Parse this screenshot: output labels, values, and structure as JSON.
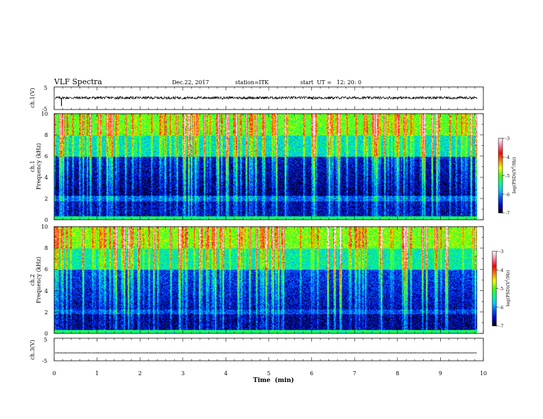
{
  "chart_data": [
    {
      "id": "ch1-waveform",
      "type": "line",
      "title": "VLF Spectra",
      "header": {
        "title": "VLF Spectra",
        "date": "Dec.22, 2017",
        "station": "station=ITK",
        "start": "start  UT =   12: 20: 0"
      },
      "ylabel": "ch.1(V)",
      "ylim": [
        -5,
        5
      ],
      "yticks": [
        5,
        -5
      ],
      "xlim": [
        0,
        10
      ],
      "x_unit": "min",
      "series": [
        {
          "values_description_free": true,
          "baseline": 0.2,
          "noise_amplitude": 0.6,
          "spike_at_min": 0.17,
          "spike_value": -3.5
        }
      ],
      "data_extent_min": 9.85
    },
    {
      "id": "ch1-spectrogram",
      "type": "heatmap",
      "ylabel": "ch.1\nFrequency  (kHz)",
      "ylabel_line1": "ch.1",
      "ylabel_line2": "Frequency  (kHz)",
      "ylim": [
        0,
        10
      ],
      "yticks": [
        0,
        2,
        4,
        6,
        8,
        10
      ],
      "xlim": [
        0,
        10
      ],
      "x_unit": "min",
      "data_extent_min": 9.85,
      "colorbar": {
        "label": "log(PSD)(V²/Hz)",
        "label_text": "log(PSD)(V",
        "label_sup": "2",
        "label_tail": "/Hz)",
        "range": [
          -7,
          -3
        ],
        "ticks": [
          "-3",
          "-4",
          "-5",
          "-6",
          "-7"
        ],
        "colors": [
          "#000000",
          "#0000c8",
          "#0050ff",
          "#00c8ff",
          "#00ff90",
          "#40ff00",
          "#f0ff00",
          "#ff8000",
          "#ff0000",
          "#ff80a0",
          "#ffffff"
        ]
      },
      "background_levels": {
        "0-1.8 kHz": -6.6,
        "1.8-2.3 kHz": -6.2,
        "2.3-6 kHz": -6.8,
        "6-8 kHz": -5.6,
        "8-10 kHz": -5.0
      }
    },
    {
      "id": "ch2-spectrogram",
      "type": "heatmap",
      "ylabel": "ch.2\nFrequency  (kHz)",
      "ylabel_line1": "ch.2",
      "ylabel_line2": "Frequency  (kHz)",
      "ylim": [
        0,
        10
      ],
      "yticks": [
        0,
        2,
        4,
        6,
        8,
        10
      ],
      "xlim": [
        0,
        10
      ],
      "x_unit": "min",
      "data_extent_min": 9.85,
      "colorbar": {
        "label": "log(PSD)(V²/Hz)",
        "label_text": "log(PSD)(V",
        "label_sup": "2",
        "label_tail": "/Hz)",
        "range": [
          -7,
          -3
        ],
        "ticks": [
          "-3",
          "-4",
          "-5",
          "-6",
          "-7"
        ],
        "colors": [
          "#000000",
          "#0000c8",
          "#0050ff",
          "#00c8ff",
          "#00ff90",
          "#40ff00",
          "#f0ff00",
          "#ff8000",
          "#ff0000",
          "#ff80a0",
          "#ffffff"
        ]
      },
      "background_levels": {
        "0-1.8 kHz": -6.7,
        "1.8-2.3 kHz": -6.3,
        "2.3-6 kHz": -6.6,
        "6-8 kHz": -5.5,
        "8-10 kHz": -4.9
      }
    },
    {
      "id": "ch3-waveform",
      "type": "line",
      "ylabel": "ch.3(V)",
      "ylim": [
        -5,
        5
      ],
      "yticks": [
        5,
        -5
      ],
      "xlim": [
        0,
        10
      ],
      "x_unit": "min",
      "series": [
        {
          "baseline": -1.5,
          "noise_amplitude": 0.05
        }
      ],
      "data_extent_min": 9.85,
      "xlabel": "Time  (min)",
      "xticks": [
        "0",
        "1",
        "2",
        "3",
        "4",
        "5",
        "6",
        "7",
        "8",
        "9",
        "10"
      ]
    }
  ]
}
